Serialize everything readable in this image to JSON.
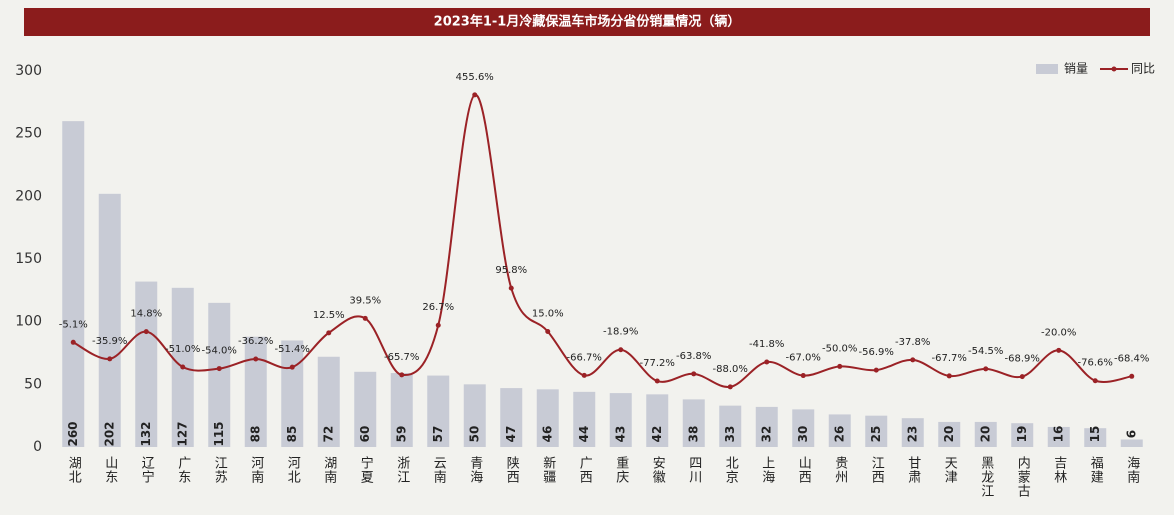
{
  "chart_data": {
    "type": "bar_line",
    "title": "2023年1-1月冷藏保温车市场分省份销量情况（辆）",
    "categories": [
      "湖北",
      "山东",
      "辽宁",
      "广东",
      "江苏",
      "河南",
      "河北",
      "湖南",
      "宁夏",
      "浙江",
      "云南",
      "青海",
      "陕西",
      "新疆",
      "广西",
      "重庆",
      "安徽",
      "四川",
      "北京",
      "上海",
      "山西",
      "贵州",
      "江西",
      "甘肃",
      "天津",
      "黑龙江",
      "内蒙古",
      "吉林",
      "福建",
      "海南"
    ],
    "series": [
      {
        "name": "销量",
        "color": "#c8cbd5",
        "values": [
          260,
          202,
          132,
          127,
          115,
          88,
          85,
          72,
          60,
          59,
          57,
          50,
          47,
          46,
          44,
          43,
          42,
          38,
          33,
          32,
          30,
          26,
          25,
          23,
          20,
          20,
          19,
          16,
          15,
          6
        ]
      },
      {
        "name": "同比",
        "color": "#9b2226",
        "axis": "y2",
        "values": [
          -5.1,
          -35.9,
          14.8,
          -51.0,
          -54.0,
          -36.2,
          -51.4,
          12.5,
          39.5,
          -65.7,
          26.7,
          455.6,
          95.8,
          15.0,
          -66.7,
          -18.9,
          -77.2,
          -63.8,
          -88.0,
          -41.8,
          -67.0,
          -50.0,
          -56.9,
          -37.8,
          -67.7,
          -54.5,
          -68.9,
          -20.0,
          -76.6,
          -68.4
        ],
        "value_labels": [
          "-5.1%",
          "-35.9%",
          "14.8%",
          "-51.0%",
          "-54.0%",
          "-36.2%",
          "-51.4%",
          "12.5%",
          "39.5%",
          "-65.7%",
          "26.7%",
          "455.6%",
          "95.8%",
          "15.0%",
          "-66.7%",
          "-18.9%",
          "-77.2%",
          "-63.8%",
          "-88.0%",
          "-41.8%",
          "-67.0%",
          "-50.0%",
          "-56.9%",
          "-37.8%",
          "-67.7%",
          "-54.5%",
          "-68.9%",
          "-20.0%",
          "-76.6%",
          "-68.4%"
        ]
      }
    ],
    "ylim": [
      0,
      300
    ],
    "yticks": [
      0,
      50,
      100,
      150,
      200,
      250,
      300
    ],
    "y2lim": [
      -200,
      500
    ],
    "legend": "top-right"
  }
}
